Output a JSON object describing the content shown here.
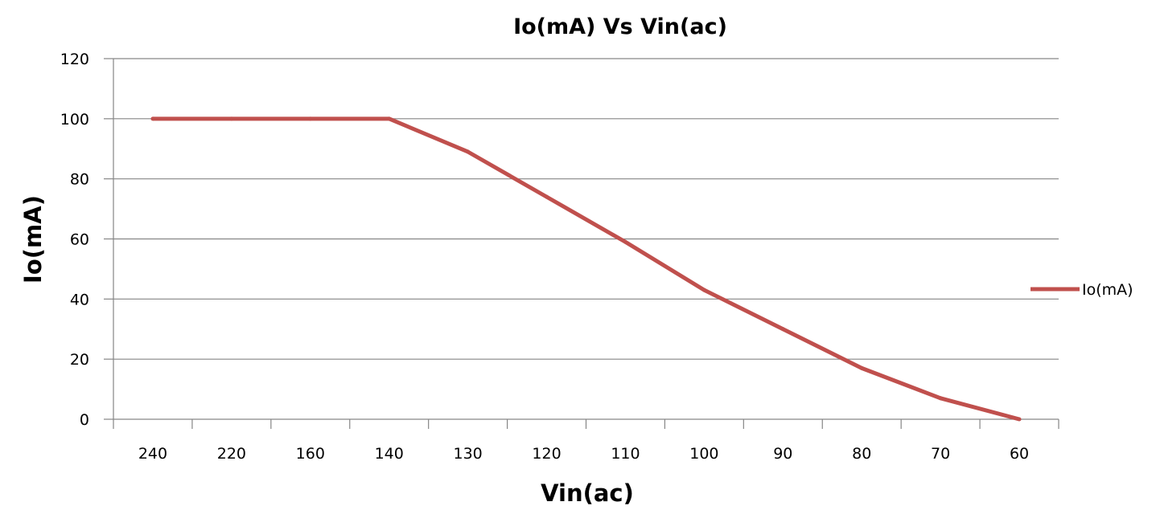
{
  "chart_data": {
    "type": "line",
    "title": "Io(mA) Vs Vin(ac)",
    "xlabel": "Vin(ac)",
    "ylabel": "Io(mA)",
    "categories": [
      "240",
      "220",
      "160",
      "140",
      "130",
      "120",
      "110",
      "100",
      "90",
      "80",
      "70",
      "60"
    ],
    "series": [
      {
        "name": "Io(mA)",
        "color": "#c0504d",
        "values": [
          100,
          100,
          100,
          100,
          89,
          74,
          59,
          43,
          30,
          17,
          7,
          0
        ]
      }
    ],
    "ylim": [
      0,
      120
    ],
    "yticks": [
      0,
      20,
      40,
      60,
      80,
      100,
      120
    ],
    "grid": true,
    "legend": "right"
  }
}
